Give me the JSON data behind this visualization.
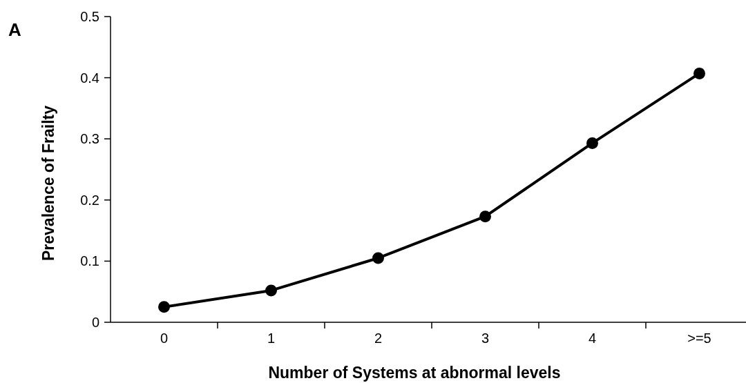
{
  "chart_data": {
    "type": "line",
    "xlabel": "Number of Systems at abnormal levels",
    "ylabel": "Prevalence of Frailty",
    "annotations": [
      "A"
    ],
    "categories": [
      "0",
      "1",
      "2",
      "3",
      "4",
      ">=5"
    ],
    "series": [
      {
        "color": "#000000",
        "values": [
          0.025,
          0.052,
          0.105,
          0.173,
          0.293,
          0.407
        ]
      }
    ],
    "ylim": [
      0,
      0.5
    ],
    "yticks": [
      0,
      0.1,
      0.2,
      0.3,
      0.4,
      0.5
    ],
    "grid": false,
    "marker": "circle",
    "line_style": "solid"
  }
}
